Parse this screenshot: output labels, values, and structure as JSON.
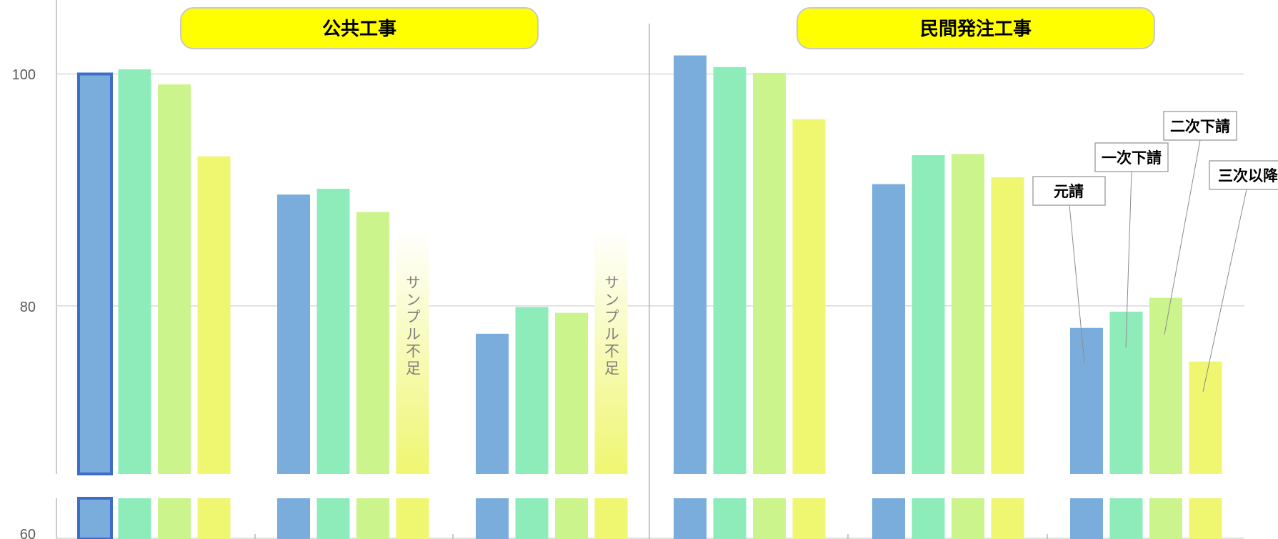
{
  "headers": [
    "公共工事",
    "民間発注工事"
  ],
  "colors": {
    "元請": "#7aaddc",
    "一次下請": "#8eecbb",
    "二次下請": "#cbf48c",
    "三次以降": "#eff670",
    "note_bg": "#fffde0",
    "header_bg": "#ffff00",
    "highlight_border": "#3f6cc6"
  },
  "note_label": "サンプル不足",
  "chart_data": {
    "type": "bar",
    "title": "",
    "xlabel": "",
    "ylabel": "",
    "ylim": [
      60,
      105
    ],
    "axis_break": true,
    "yticks": [
      60,
      80,
      100
    ],
    "grid": true,
    "legend": "callout-labels",
    "panels": [
      {
        "header": "公共工事",
        "groups": [
          {
            "values": {
              "元請": 100.0,
              "一次下請": 100.4,
              "二次下請": 99.1,
              "三次以降": 92.9
            },
            "highlight": "元請"
          },
          {
            "values": {
              "元請": 89.6,
              "一次下請": 90.1,
              "二次下請": 88.1,
              "三次以降": null
            },
            "note": "サンプル不足"
          },
          {
            "values": {
              "元請": 77.6,
              "一次下請": 79.9,
              "二次下請": 79.4,
              "三次以降": null
            },
            "note": "サンプル不足"
          }
        ]
      },
      {
        "header": "民間発注工事",
        "groups": [
          {
            "values": {
              "元請": 101.6,
              "一次下請": 100.6,
              "二次下請": 100.1,
              "三次以降": 96.1
            }
          },
          {
            "values": {
              "元請": 90.5,
              "一次下請": 93.0,
              "二次下請": 93.1,
              "三次以降": 91.1
            }
          },
          {
            "values": {
              "元請": 78.1,
              "一次下請": 79.5,
              "二次下請": 80.7,
              "三次以降": 75.2
            }
          }
        ]
      }
    ],
    "series": [
      {
        "name": "元請"
      },
      {
        "name": "一次下請"
      },
      {
        "name": "二次下請"
      },
      {
        "name": "三次以降"
      }
    ]
  }
}
